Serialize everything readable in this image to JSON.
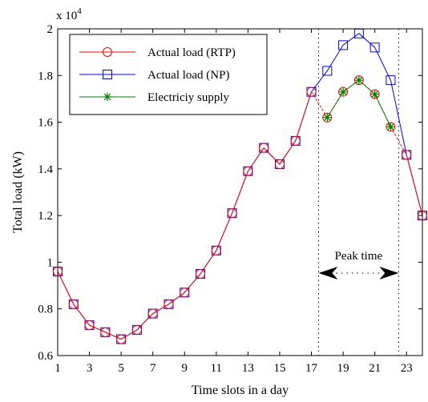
{
  "chart_data": {
    "type": "line",
    "title": "",
    "xlabel": "Time slots in a day",
    "ylabel": "Total load (kW)",
    "xlim": [
      1,
      24
    ],
    "ylim": [
      0.6,
      2.0
    ],
    "y_multiplier_label": "x 10",
    "y_multiplier_exponent": "4",
    "x_ticks": [
      1,
      3,
      5,
      7,
      9,
      11,
      13,
      15,
      17,
      19,
      21,
      23
    ],
    "y_ticks": [
      0.6,
      0.8,
      1,
      1.2,
      1.4,
      1.6,
      1.8,
      2
    ],
    "grid": false,
    "legend_position": "top-left",
    "series": [
      {
        "name": "Actual load (RTP)",
        "color": "#ff0000",
        "marker": "circle",
        "x": [
          1,
          2,
          3,
          4,
          5,
          6,
          7,
          8,
          9,
          10,
          11,
          12,
          13,
          14,
          15,
          16,
          17,
          18,
          19,
          20,
          21,
          22,
          23,
          24
        ],
        "values": [
          0.96,
          0.82,
          0.73,
          0.7,
          0.67,
          0.71,
          0.78,
          0.82,
          0.87,
          0.95,
          1.05,
          1.21,
          1.39,
          1.49,
          1.42,
          1.52,
          1.73,
          1.62,
          1.73,
          1.78,
          1.72,
          1.58,
          1.46,
          1.2
        ]
      },
      {
        "name": "Actual load (NP)",
        "color": "#0000ff",
        "marker": "square",
        "x": [
          1,
          2,
          3,
          4,
          5,
          6,
          7,
          8,
          9,
          10,
          11,
          12,
          13,
          14,
          15,
          16,
          17,
          18,
          19,
          20,
          21,
          22,
          23,
          24
        ],
        "values": [
          0.96,
          0.82,
          0.73,
          0.7,
          0.67,
          0.71,
          0.78,
          0.82,
          0.87,
          0.95,
          1.05,
          1.21,
          1.39,
          1.49,
          1.42,
          1.52,
          1.73,
          1.82,
          1.93,
          1.98,
          1.92,
          1.78,
          1.46,
          1.2
        ]
      },
      {
        "name": "Electriciy supply",
        "color": "#008000",
        "marker": "star",
        "x": [
          18,
          19,
          20,
          21,
          22
        ],
        "values": [
          1.62,
          1.73,
          1.78,
          1.72,
          1.58
        ]
      }
    ],
    "annotations": {
      "peak_label": "Peak time",
      "peak_start_x": 17.45,
      "peak_end_x": 22.5
    }
  }
}
